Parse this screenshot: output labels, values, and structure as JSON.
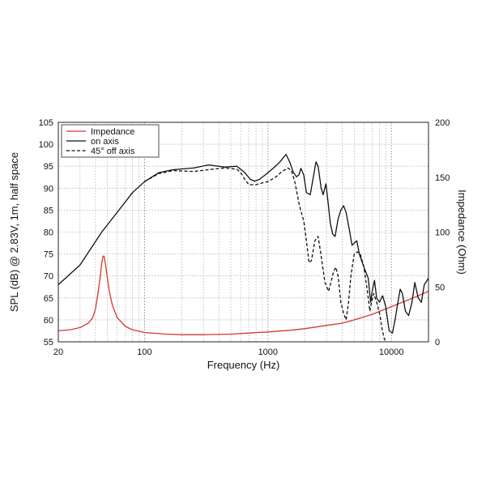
{
  "chart_data": {
    "type": "line",
    "xscale": "log",
    "xlabel": "Frequency (Hz)",
    "ylabel": "SPL (dB) @ 2.83V, 1m, half space",
    "y2label": "Impedance (Ohm)",
    "xlim": [
      20,
      20000
    ],
    "ylim": [
      55,
      105
    ],
    "y2lim": [
      0,
      200
    ],
    "grid": true,
    "legend": "top-left",
    "xticks": [
      {
        "value": 20,
        "label": "20"
      },
      {
        "value": 100,
        "label": "100"
      },
      {
        "value": 1000,
        "label": "1000"
      },
      {
        "value": 10000,
        "label": "10000"
      }
    ],
    "yticks": [
      "55",
      "60",
      "65",
      "70",
      "75",
      "80",
      "85",
      "90",
      "95",
      "100",
      "105"
    ],
    "y2ticks": [
      "0",
      "50",
      "100",
      "150",
      "200"
    ],
    "series": [
      {
        "name": "Impedance",
        "axis": "right",
        "color": "#d4392c",
        "dash": "solid",
        "points": [
          [
            20,
            10
          ],
          [
            25,
            11
          ],
          [
            30,
            13
          ],
          [
            35,
            17
          ],
          [
            38,
            22
          ],
          [
            40,
            30
          ],
          [
            42,
            45
          ],
          [
            44,
            62
          ],
          [
            45,
            72
          ],
          [
            46,
            78
          ],
          [
            47,
            78
          ],
          [
            48,
            72
          ],
          [
            50,
            58
          ],
          [
            52,
            45
          ],
          [
            55,
            33
          ],
          [
            60,
            22
          ],
          [
            70,
            14
          ],
          [
            80,
            11
          ],
          [
            100,
            8.5
          ],
          [
            150,
            7
          ],
          [
            200,
            6.5
          ],
          [
            300,
            6.5
          ],
          [
            500,
            7
          ],
          [
            700,
            8
          ],
          [
            1000,
            9
          ],
          [
            1500,
            10.5
          ],
          [
            2000,
            12
          ],
          [
            3000,
            15
          ],
          [
            4000,
            17
          ],
          [
            5000,
            20
          ],
          [
            7000,
            25
          ],
          [
            10000,
            32
          ],
          [
            15000,
            40
          ],
          [
            20000,
            46
          ]
        ]
      },
      {
        "name": "on axis",
        "axis": "left",
        "color": "#111111",
        "dash": "solid",
        "points": [
          [
            20,
            68
          ],
          [
            30,
            72.5
          ],
          [
            45,
            80
          ],
          [
            60,
            84.5
          ],
          [
            80,
            89
          ],
          [
            100,
            91.5
          ],
          [
            130,
            93.5
          ],
          [
            170,
            94.2
          ],
          [
            250,
            94.6
          ],
          [
            330,
            95.3
          ],
          [
            450,
            94.8
          ],
          [
            560,
            95
          ],
          [
            650,
            93.5
          ],
          [
            720,
            92
          ],
          [
            780,
            91.6
          ],
          [
            850,
            92
          ],
          [
            950,
            93
          ],
          [
            1100,
            94.5
          ],
          [
            1250,
            96
          ],
          [
            1400,
            97.7
          ],
          [
            1500,
            96
          ],
          [
            1600,
            93.7
          ],
          [
            1700,
            92.6
          ],
          [
            1780,
            93
          ],
          [
            1850,
            94.5
          ],
          [
            1950,
            93
          ],
          [
            2050,
            89
          ],
          [
            2200,
            88.5
          ],
          [
            2350,
            93
          ],
          [
            2450,
            96
          ],
          [
            2550,
            95
          ],
          [
            2700,
            90
          ],
          [
            2800,
            88.5
          ],
          [
            2950,
            91
          ],
          [
            3050,
            87.5
          ],
          [
            3200,
            82
          ],
          [
            3350,
            79.5
          ],
          [
            3500,
            79
          ],
          [
            3700,
            83
          ],
          [
            3900,
            85
          ],
          [
            4100,
            86
          ],
          [
            4300,
            84.5
          ],
          [
            4600,
            80
          ],
          [
            4800,
            77
          ],
          [
            5000,
            77.5
          ],
          [
            5250,
            78
          ],
          [
            5500,
            75
          ],
          [
            6000,
            72
          ],
          [
            6500,
            69.5
          ],
          [
            6800,
            64
          ],
          [
            7000,
            66.5
          ],
          [
            7300,
            69
          ],
          [
            7600,
            65
          ],
          [
            8000,
            64
          ],
          [
            8500,
            65.5
          ],
          [
            9000,
            63
          ],
          [
            9600,
            57.5
          ],
          [
            10200,
            57
          ],
          [
            10800,
            60.5
          ],
          [
            11300,
            64
          ],
          [
            11800,
            67
          ],
          [
            12300,
            66
          ],
          [
            13000,
            62
          ],
          [
            13800,
            61
          ],
          [
            14700,
            64
          ],
          [
            15500,
            68.5
          ],
          [
            16500,
            65
          ],
          [
            17500,
            64
          ],
          [
            18500,
            68
          ],
          [
            20000,
            69.5
          ]
        ]
      },
      {
        "name": "45° off axis",
        "axis": "left",
        "color": "#111111",
        "dash": "dashed",
        "points": [
          [
            100,
            91.5
          ],
          [
            130,
            93.3
          ],
          [
            170,
            94
          ],
          [
            250,
            93.8
          ],
          [
            350,
            94.3
          ],
          [
            450,
            94.6
          ],
          [
            560,
            94.3
          ],
          [
            600,
            93.6
          ],
          [
            650,
            92
          ],
          [
            700,
            90.8
          ],
          [
            800,
            90.8
          ],
          [
            900,
            91.2
          ],
          [
            1000,
            91.5
          ],
          [
            1150,
            92.5
          ],
          [
            1300,
            93.8
          ],
          [
            1450,
            94.6
          ],
          [
            1550,
            94
          ],
          [
            1650,
            91.5
          ],
          [
            1800,
            86
          ],
          [
            1950,
            82.5
          ],
          [
            2050,
            78
          ],
          [
            2150,
            73
          ],
          [
            2250,
            73.5
          ],
          [
            2400,
            78
          ],
          [
            2550,
            79
          ],
          [
            2650,
            76
          ],
          [
            2800,
            71.5
          ],
          [
            2900,
            68.5
          ],
          [
            3000,
            67.5
          ],
          [
            3100,
            66.5
          ],
          [
            3200,
            68
          ],
          [
            3400,
            71
          ],
          [
            3550,
            72
          ],
          [
            3700,
            70
          ],
          [
            3900,
            64
          ],
          [
            4100,
            61.5
          ],
          [
            4300,
            60
          ],
          [
            4500,
            64
          ],
          [
            4700,
            70
          ],
          [
            5000,
            75
          ],
          [
            5300,
            75.5
          ],
          [
            5600,
            75
          ],
          [
            6000,
            72
          ],
          [
            6400,
            66.5
          ],
          [
            6700,
            62
          ],
          [
            6900,
            64
          ],
          [
            7200,
            66
          ],
          [
            7600,
            64
          ],
          [
            8100,
            61
          ],
          [
            8400,
            58
          ],
          [
            8800,
            55.5
          ],
          [
            9200,
            55
          ]
        ]
      }
    ]
  }
}
